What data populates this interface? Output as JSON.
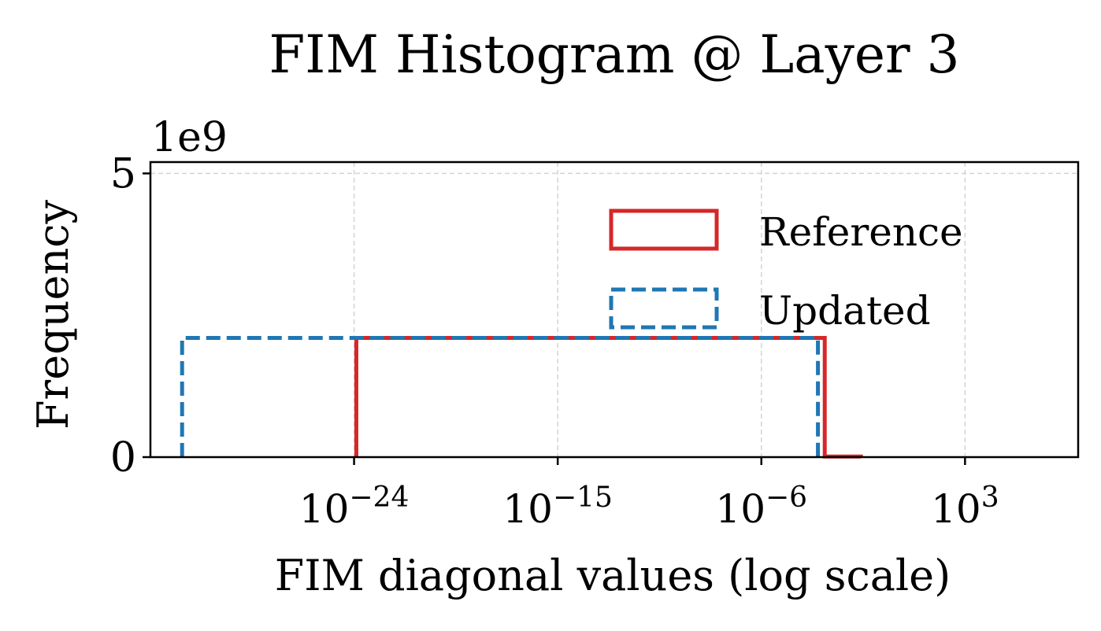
{
  "chart_data": {
    "type": "histogram",
    "title": "FIM Histogram @ Layer 3",
    "xlabel": "FIM diagonal values (log scale)",
    "ylabel": "Frequency",
    "y_offset_label": "1e9",
    "x_scale": "log",
    "x_range_exp": [
      -33,
      8
    ],
    "y_range": [
      0,
      5.2
    ],
    "x_ticks": [
      {
        "exp": -24,
        "base": "10",
        "sup": "−24"
      },
      {
        "exp": -15,
        "base": "10",
        "sup": "−15"
      },
      {
        "exp": -6,
        "base": "10",
        "sup": "−6"
      },
      {
        "exp": 3,
        "base": "10",
        "sup": "3"
      }
    ],
    "y_ticks": [
      {
        "value": 0,
        "label": "0"
      },
      {
        "value": 5,
        "label": "5"
      }
    ],
    "grid": true,
    "legend_position": "top-right",
    "series": [
      {
        "name": "Reference",
        "color": "#d62728",
        "linestyle": "solid",
        "bins": [
          {
            "from_exp": -23.9,
            "to_exp": -3.2,
            "count": 2.1
          },
          {
            "from_exp": -3.2,
            "to_exp": -1.6,
            "count": 0.01
          }
        ]
      },
      {
        "name": "Updated",
        "color": "#1f77b4",
        "linestyle": "dashed",
        "bins": [
          {
            "from_exp": -31.6,
            "to_exp": -3.5,
            "count": 2.1
          }
        ]
      }
    ]
  }
}
